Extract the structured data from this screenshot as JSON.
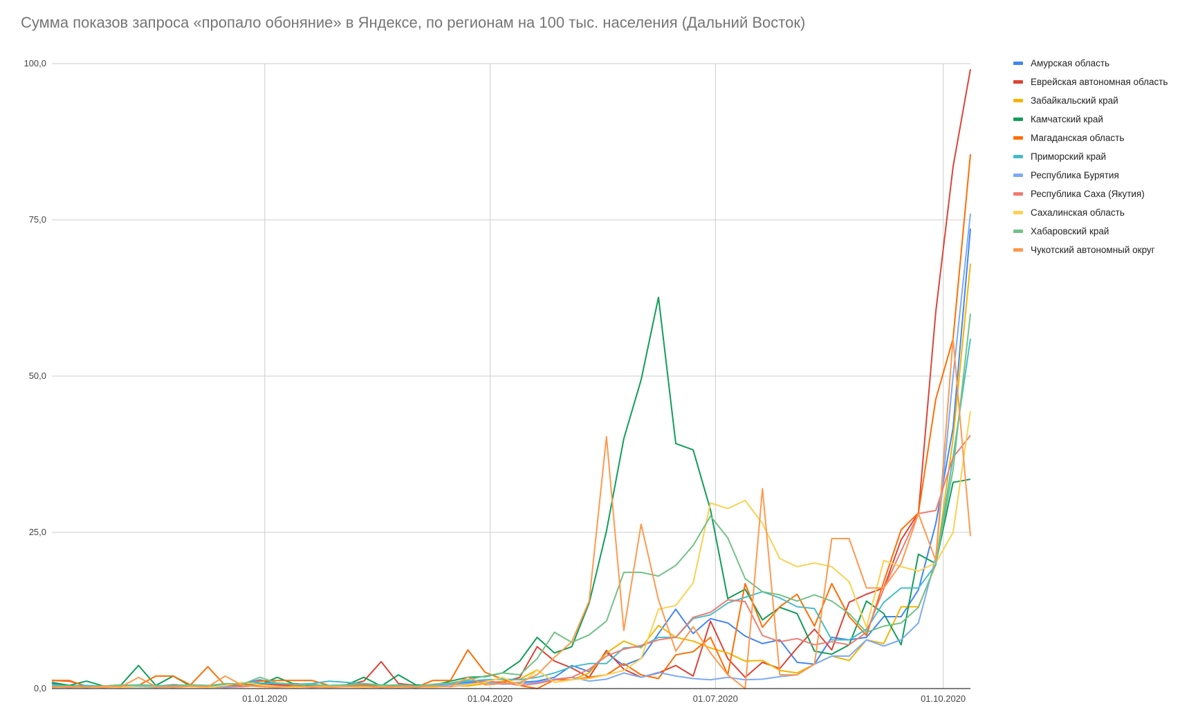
{
  "chart_data": {
    "type": "line",
    "title": "Сумма показов запроса «пропало обоняние» в Яндексе, по регионам на 100 тыс. населения (Дальний Восток)",
    "xlabel": "",
    "ylabel": "",
    "ylim": [
      0,
      100
    ],
    "yticks": [
      "0,0",
      "25,0",
      "50,0",
      "75,0",
      "100,0"
    ],
    "ytick_values": [
      0,
      25,
      50,
      75,
      100
    ],
    "xticks": [
      "01.01.2020",
      "01.04.2020",
      "01.07.2020",
      "01.10.2020"
    ],
    "xtick_dates": [
      "2020-01-01",
      "2020-04-01",
      "2020-07-01",
      "2020-10-01"
    ],
    "grid": true,
    "legend_position": "right",
    "x": [
      "2019-10-07",
      "2019-10-14",
      "2019-10-21",
      "2019-10-28",
      "2019-11-04",
      "2019-11-11",
      "2019-11-18",
      "2019-11-25",
      "2019-12-02",
      "2019-12-09",
      "2019-12-16",
      "2019-12-23",
      "2019-12-30",
      "2020-01-06",
      "2020-01-13",
      "2020-01-20",
      "2020-01-27",
      "2020-02-03",
      "2020-02-10",
      "2020-02-17",
      "2020-02-24",
      "2020-03-02",
      "2020-03-09",
      "2020-03-16",
      "2020-03-23",
      "2020-03-30",
      "2020-04-06",
      "2020-04-13",
      "2020-04-20",
      "2020-04-27",
      "2020-05-04",
      "2020-05-11",
      "2020-05-18",
      "2020-05-25",
      "2020-06-01",
      "2020-06-08",
      "2020-06-15",
      "2020-06-22",
      "2020-06-29",
      "2020-07-06",
      "2020-07-13",
      "2020-07-20",
      "2020-07-27",
      "2020-08-03",
      "2020-08-10",
      "2020-08-17",
      "2020-08-24",
      "2020-08-31",
      "2020-09-07",
      "2020-09-14",
      "2020-09-21",
      "2020-09-28",
      "2020-10-05",
      "2020-10-12"
    ],
    "series": [
      {
        "name": "Амурская область",
        "color": "#4285f4",
        "values": [
          0.8,
          0.5,
          0.3,
          0.4,
          0.3,
          0.5,
          0.4,
          0.6,
          0.5,
          0.4,
          0.6,
          0.8,
          1.4,
          0.7,
          0.8,
          0.6,
          0.5,
          0.6,
          0.7,
          0.4,
          0.5,
          0.3,
          0.6,
          0.8,
          1.0,
          1.2,
          0.8,
          1.0,
          1.2,
          1.8,
          3.7,
          2.7,
          5.7,
          3.7,
          4.8,
          8.8,
          12.7,
          8.8,
          11.2,
          10.5,
          8.4,
          7.2,
          7.8,
          4.2,
          3.9,
          8.2,
          7.8,
          8.2,
          11.5,
          11.5,
          15.8,
          26.4,
          41.7,
          73.6
        ]
      },
      {
        "name": "Еврейская автономная область",
        "color": "#db4437",
        "values": [
          1.3,
          1.2,
          0.4,
          0.3,
          0.5,
          0.4,
          0.3,
          0.6,
          0.5,
          0.3,
          0.4,
          0.5,
          0.8,
          0.6,
          0.5,
          0.7,
          0.4,
          0.6,
          1.2,
          4.3,
          0.8,
          0.5,
          0.3,
          0.5,
          0.6,
          1.1,
          1.0,
          1.8,
          6.7,
          4.4,
          3.3,
          1.8,
          6.1,
          3.1,
          1.8,
          2.5,
          3.7,
          2.0,
          10.8,
          4.8,
          1.8,
          4.2,
          3.2,
          6.5,
          9.5,
          6.2,
          13.8,
          15.1,
          16.1,
          23.8,
          28.1,
          60.3,
          83.5,
          99.1
        ]
      },
      {
        "name": "Забайкальский край",
        "color": "#f4b400",
        "values": [
          0.3,
          0.2,
          0.3,
          0.2,
          0.4,
          0.3,
          0.2,
          0.3,
          0.4,
          0.3,
          0.2,
          0.5,
          0.4,
          0.3,
          0.2,
          0.3,
          0.4,
          0.3,
          0.2,
          0.3,
          0.2,
          0.4,
          0.3,
          0.5,
          0.4,
          0.8,
          1.2,
          1.5,
          3.0,
          1.0,
          1.4,
          2.5,
          5.7,
          7.6,
          6.5,
          10.1,
          8.2,
          7.6,
          6.5,
          5.7,
          4.4,
          4.5,
          2.9,
          2.5,
          3.9,
          5.2,
          4.5,
          7.8,
          7.2,
          13.1,
          13.1,
          19.8,
          40.0,
          68.0
        ]
      },
      {
        "name": "Камчатский край",
        "color": "#0f9d58",
        "values": [
          1.0,
          0.5,
          1.2,
          0.4,
          0.6,
          3.7,
          0.5,
          2.0,
          0.4,
          0.3,
          0.5,
          0.8,
          0.6,
          1.8,
          0.7,
          0.5,
          0.4,
          0.6,
          1.8,
          0.4,
          2.2,
          0.6,
          0.5,
          1.2,
          1.8,
          1.9,
          2.5,
          4.4,
          8.2,
          5.7,
          6.7,
          13.7,
          25.2,
          40.0,
          49.4,
          62.6,
          39.2,
          38.2,
          28.6,
          14.4,
          15.9,
          11.0,
          13.0,
          12.0,
          6.0,
          5.5,
          7.0,
          14.0,
          12.0,
          7.0,
          21.5,
          20.0,
          33.0,
          33.5
        ]
      },
      {
        "name": "Магаданская область",
        "color": "#ff6d01",
        "values": [
          1.3,
          1.3,
          0.3,
          0.4,
          0.3,
          0.5,
          2.0,
          2.0,
          0.6,
          3.5,
          0.5,
          0.4,
          1.2,
          1.3,
          1.3,
          1.3,
          0.5,
          0.4,
          0.5,
          0.3,
          0.4,
          0.2,
          1.3,
          1.3,
          6.2,
          2.6,
          1.5,
          0.5,
          0.0,
          1.4,
          1.4,
          1.8,
          2.2,
          4.0,
          2.2,
          1.6,
          5.4,
          5.9,
          8.2,
          2.2,
          16.8,
          9.8,
          13.1,
          15.1,
          10.0,
          16.8,
          11.5,
          8.5,
          17.1,
          25.4,
          28.1,
          46.3,
          56.0,
          85.5
        ]
      },
      {
        "name": "Приморский край",
        "color": "#46bdc6",
        "values": [
          0.6,
          0.4,
          0.5,
          0.4,
          0.5,
          0.6,
          0.5,
          0.4,
          0.6,
          0.5,
          0.7,
          0.8,
          0.9,
          0.8,
          0.7,
          0.8,
          1.2,
          1.0,
          0.8,
          0.6,
          0.5,
          0.4,
          0.6,
          0.8,
          1.2,
          1.4,
          1.5,
          1.4,
          1.8,
          2.5,
          3.5,
          4.0,
          4.0,
          6.5,
          6.7,
          8.2,
          8.2,
          11.2,
          11.8,
          13.7,
          14.6,
          15.5,
          14.5,
          13.1,
          12.8,
          7.8,
          7.8,
          9.5,
          13.8,
          16.1,
          16.1,
          19.8,
          37.0,
          56.0
        ]
      },
      {
        "name": "Республика Бурятия",
        "color": "#7baaf7",
        "values": [
          0.4,
          0.3,
          0.2,
          0.3,
          0.2,
          0.3,
          0.2,
          0.3,
          0.4,
          0.3,
          0.2,
          0.3,
          0.5,
          0.4,
          0.3,
          0.3,
          0.4,
          0.3,
          0.2,
          0.3,
          0.2,
          0.3,
          0.4,
          0.6,
          0.8,
          1.0,
          0.7,
          0.8,
          1.0,
          1.5,
          1.8,
          1.2,
          1.5,
          2.5,
          1.8,
          2.6,
          2.0,
          1.6,
          1.4,
          1.8,
          1.4,
          1.5,
          1.9,
          2.2,
          3.9,
          5.2,
          5.2,
          7.8,
          6.8,
          7.8,
          10.5,
          21.0,
          50.0,
          76.0
        ]
      },
      {
        "name": "Республика Саха (Якутия)",
        "color": "#f07b72",
        "values": [
          0.3,
          0.2,
          0.3,
          0.2,
          0.3,
          0.4,
          0.3,
          0.2,
          0.3,
          0.2,
          0.4,
          0.3,
          0.5,
          0.4,
          0.3,
          0.2,
          0.3,
          0.4,
          0.3,
          0.2,
          0.3,
          0.2,
          0.4,
          0.3,
          0.6,
          1.2,
          1.0,
          0.5,
          0.8,
          1.4,
          1.8,
          3.1,
          5.2,
          6.3,
          6.9,
          7.8,
          8.2,
          11.4,
          12.2,
          14.2,
          13.9,
          8.5,
          7.5,
          8.0,
          7.0,
          7.5,
          7.0,
          9.0,
          16.0,
          22.0,
          28.0,
          28.5,
          37.0,
          40.5
        ]
      },
      {
        "name": "Сахалинская область",
        "color": "#fcd04f",
        "values": [
          0.2,
          0.3,
          0.2,
          0.3,
          0.2,
          0.4,
          0.3,
          0.2,
          0.3,
          0.2,
          0.5,
          1.0,
          0.6,
          0.3,
          0.2,
          0.3,
          0.4,
          0.3,
          0.2,
          0.3,
          0.2,
          0.3,
          0.2,
          0.4,
          0.6,
          1.0,
          1.8,
          0.5,
          3.0,
          1.0,
          1.4,
          1.6,
          2.2,
          2.9,
          4.8,
          12.7,
          13.3,
          16.9,
          29.7,
          28.8,
          30.1,
          26.4,
          20.8,
          19.5,
          20.1,
          19.5,
          17.1,
          9.8,
          20.5,
          19.5,
          18.8,
          20.1,
          25.0,
          44.4
        ]
      },
      {
        "name": "Хабаровский край",
        "color": "#71c287",
        "values": [
          0.5,
          0.4,
          0.3,
          0.4,
          0.6,
          0.5,
          0.4,
          0.5,
          0.6,
          0.5,
          0.8,
          0.7,
          1.8,
          0.9,
          0.7,
          0.6,
          0.5,
          0.6,
          0.8,
          0.5,
          0.6,
          0.4,
          0.7,
          0.9,
          1.4,
          2.0,
          2.5,
          2.2,
          4.8,
          9.0,
          7.4,
          8.6,
          10.8,
          18.6,
          18.6,
          18.0,
          19.7,
          22.9,
          27.6,
          24.1,
          17.6,
          15.5,
          15.0,
          14.0,
          15.0,
          14.0,
          12.0,
          9.0,
          10.0,
          10.5,
          13.0,
          20.0,
          35.0,
          60.0
        ]
      },
      {
        "name": "Чукотский автономный округ",
        "color": "#ff994d",
        "values": [
          0.2,
          0.3,
          0.2,
          0.4,
          0.3,
          1.8,
          0.3,
          0.2,
          0.4,
          0.3,
          2.0,
          0.5,
          0.3,
          0.2,
          0.4,
          0.3,
          0.2,
          0.3,
          0.4,
          0.2,
          0.3,
          0.2,
          0.4,
          0.3,
          1.8,
          0.6,
          0.8,
          1.0,
          2.2,
          5.0,
          7.5,
          14.0,
          40.3,
          9.3,
          26.3,
          14.2,
          6.0,
          9.9,
          5.7,
          2.2,
          0.0,
          32.0,
          2.2,
          2.2,
          3.9,
          24.0,
          24.0,
          16.1,
          16.1,
          20.0,
          28.0,
          20.5,
          56.0,
          24.4
        ]
      }
    ]
  }
}
